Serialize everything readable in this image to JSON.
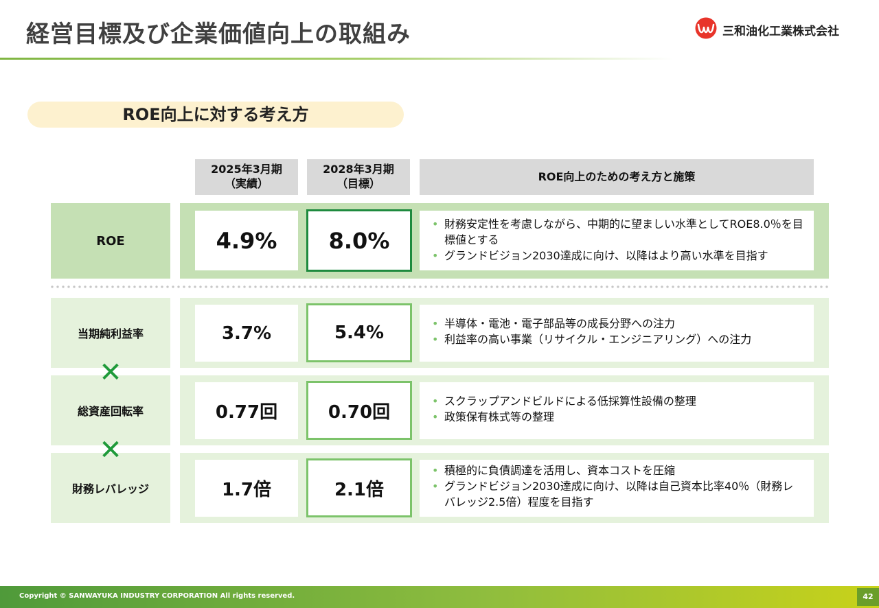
{
  "header": {
    "title": "経営目標及び企業価値向上の取組み",
    "company": "三和油化工業株式会社",
    "logo_icon": "sanwa-logo-icon",
    "brand_color": "#e8342a"
  },
  "section": {
    "label": "ROE向上に対する考え方"
  },
  "table": {
    "columns": [
      {
        "line1": "2025年3月期",
        "line2": "（実績）"
      },
      {
        "line1": "2028年3月期",
        "line2": "（目標）"
      },
      {
        "line1": "ROE向上のための考え方と施策",
        "line2": ""
      }
    ],
    "rows": [
      {
        "label": "ROE",
        "actual": "4.9%",
        "target": "8.0%",
        "notes": [
          "財務安定性を考慮しながら、中期的に望ましい水準としてROE8.0％を目標値とする",
          "グランドビジョン2030達成に向け、以降はより高い水準を目指す"
        ]
      },
      {
        "label": "当期純利益率",
        "actual": "3.7%",
        "target": "5.4%",
        "notes": [
          "半導体・電池・電子部品等の成長分野への注力",
          "利益率の高い事業（リサイクル・エンジニアリング）への注力"
        ]
      },
      {
        "label": "総資産回転率",
        "actual": "0.77回",
        "target": "0.70回",
        "notes": [
          "スクラップアンドビルドによる低採算性設備の整理",
          "政策保有株式等の整理"
        ]
      },
      {
        "label": "財務レバレッジ",
        "actual": "1.7倍",
        "target": "2.1倍",
        "notes": [
          "積極的に負債調達を活用し、資本コストを圧縮",
          "グランドビジョン2030達成に向け、以降は自己資本比率40％（財務レバレッジ2.5倍）程度を目指す"
        ]
      }
    ],
    "multiply_sign": "✕"
  },
  "footer": {
    "copyright": "Copyright © SANWAYUKA INDUSTRY CORPORATION All rights reserved.",
    "page_number": "42"
  },
  "colors": {
    "accent_green": "#7cc36a",
    "target_border_main": "#1e8a3e",
    "row_fill": "#e5f2dc",
    "roe_fill": "#c5e0b4",
    "pill_fill": "#fdf1cf"
  }
}
